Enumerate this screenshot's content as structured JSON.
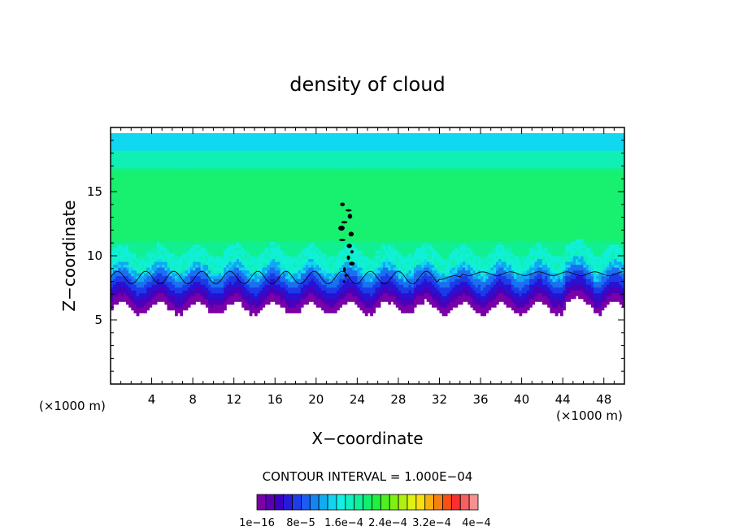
{
  "chart_data": {
    "type": "heatmap",
    "title": "density of cloud",
    "xlabel": "X−coordinate",
    "ylabel": "Z−coordinate",
    "x_units_left": "(×1000 m)",
    "x_units_right": "(×1000 m)",
    "xlim": [
      0,
      50
    ],
    "ylim": [
      0,
      20
    ],
    "x_ticks": [
      4,
      8,
      12,
      16,
      20,
      24,
      28,
      32,
      36,
      40,
      44,
      48
    ],
    "y_ticks": [
      5,
      10,
      15
    ],
    "contour_interval_label": "CONTOUR INTERVAL = 1.000E−04",
    "colorbar": {
      "colors": [
        "#7a00a8",
        "#5a00b0",
        "#3c00c0",
        "#2a18d8",
        "#1e3ce8",
        "#1a5cf4",
        "#1484f4",
        "#10acf0",
        "#10d4f0",
        "#10f0e4",
        "#10f0c0",
        "#10f098",
        "#10f070",
        "#20f040",
        "#50f020",
        "#80f010",
        "#b0f010",
        "#e0f010",
        "#f8e010",
        "#f8b010",
        "#f88010",
        "#f85010",
        "#f83030",
        "#f86060",
        "#f89090"
      ],
      "labels": [
        "1e−16",
        "8e−5",
        "1.6e−4",
        "2.4e−4",
        "3.2e−4",
        "4e−4"
      ]
    },
    "field": {
      "cloud_base_z": 6,
      "cloud_top_z": 19.5,
      "core_x": 23,
      "core_top_z": 14
    }
  }
}
